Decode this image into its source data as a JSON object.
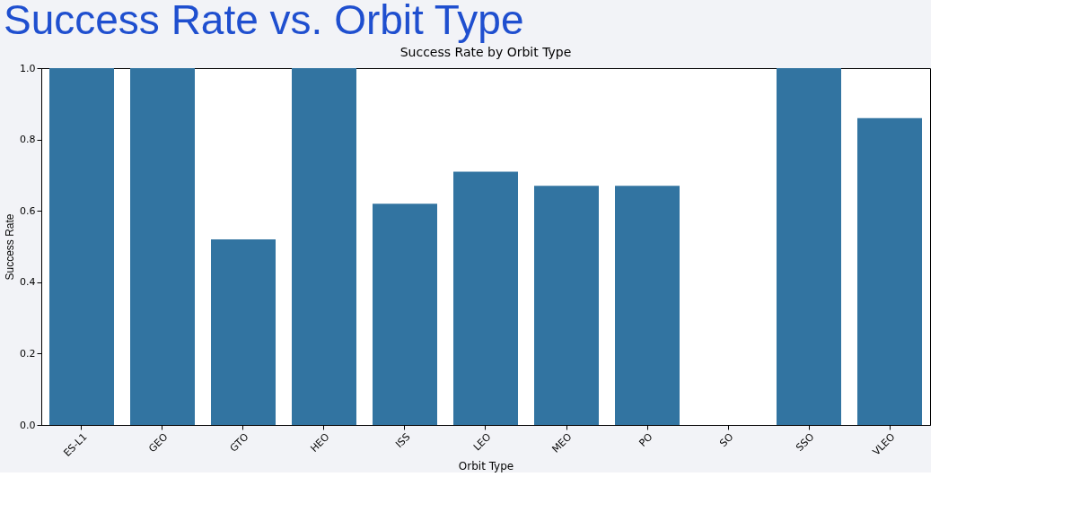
{
  "chart_data": {
    "type": "bar",
    "title": "Success Rate vs. Orbit Type",
    "subtitle": "Success Rate by Orbit Type",
    "xlabel": "Orbit Type",
    "ylabel": "Success Rate",
    "categories": [
      "ES-L1",
      "GEO",
      "GTO",
      "HEO",
      "ISS",
      "LEO",
      "MEO",
      "PO",
      "SO",
      "SSO",
      "VLEO"
    ],
    "values": [
      1.0,
      1.0,
      0.52,
      1.0,
      0.62,
      0.71,
      0.67,
      0.67,
      0.0,
      1.0,
      0.86
    ],
    "color": "#3274a1",
    "ylim": [
      0,
      1
    ],
    "yticks": [
      {
        "value": 0,
        "label": "0.0"
      },
      {
        "value": 0.2,
        "label": "0.2"
      },
      {
        "value": 0.4,
        "label": "0.4"
      },
      {
        "value": 0.6,
        "label": "0.6"
      },
      {
        "value": 0.8,
        "label": "0.8"
      },
      {
        "value": 1,
        "label": "1.0"
      }
    ],
    "grid": false
  }
}
